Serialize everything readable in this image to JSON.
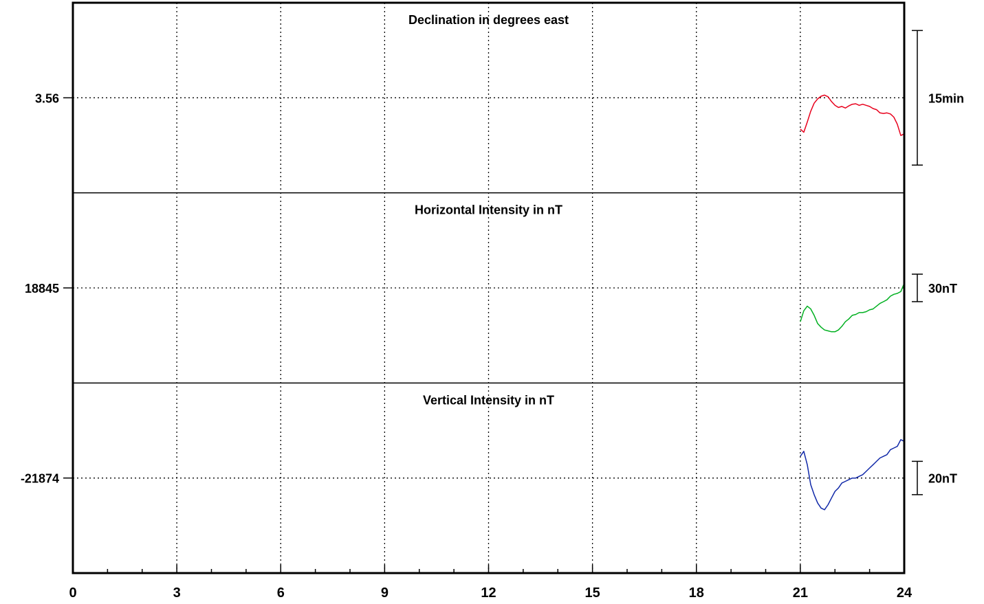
{
  "chart_data": {
    "type": "line",
    "x": {
      "ticks": [
        0,
        3,
        6,
        9,
        12,
        15,
        18,
        21,
        24
      ],
      "tick_labels": [
        "0",
        "3",
        "6",
        "9",
        "12",
        "15",
        "18",
        "21",
        "24"
      ],
      "range": [
        0,
        24
      ],
      "minor_step": 1
    },
    "grid": true,
    "panels": [
      {
        "title": "Declination in degrees east",
        "ref_value": 3.56,
        "ref_label": "3.56",
        "scale_label": "15min",
        "scale_span": 0.25,
        "half_range": 0.1765,
        "color": "#e8001c",
        "series": {
          "x": [
            21.0,
            21.1,
            21.2,
            21.3,
            21.4,
            21.5,
            21.6,
            21.7,
            21.8,
            21.9,
            22.0,
            22.1,
            22.2,
            22.3,
            22.4,
            22.5,
            22.6,
            22.7,
            22.8,
            22.9,
            23.0,
            23.1,
            23.2,
            23.3,
            23.4,
            23.5,
            23.6,
            23.7,
            23.8,
            23.9,
            24.0
          ],
          "y": [
            3.502,
            3.496,
            3.515,
            3.535,
            3.55,
            3.558,
            3.563,
            3.565,
            3.562,
            3.553,
            3.546,
            3.542,
            3.544,
            3.541,
            3.545,
            3.548,
            3.549,
            3.546,
            3.548,
            3.546,
            3.544,
            3.54,
            3.538,
            3.532,
            3.531,
            3.532,
            3.53,
            3.524,
            3.511,
            3.49,
            3.493
          ]
        }
      },
      {
        "title": "Horizontal Intensity in nT",
        "ref_value": 18845,
        "ref_label": "18845",
        "scale_label": "30nT",
        "scale_span": 30,
        "half_range": 104,
        "color": "#00b020",
        "series": {
          "x": [
            21.0,
            21.1,
            21.2,
            21.3,
            21.4,
            21.5,
            21.6,
            21.7,
            21.8,
            21.9,
            22.0,
            22.1,
            22.2,
            22.3,
            22.4,
            22.5,
            22.6,
            22.7,
            22.8,
            22.9,
            23.0,
            23.1,
            23.2,
            23.3,
            23.4,
            23.5,
            23.6,
            23.7,
            23.8,
            23.9,
            24.0
          ],
          "y": [
            18808,
            18820,
            18825,
            18822,
            18815,
            18806,
            18802,
            18799,
            18798,
            18797,
            18797,
            18799,
            18803,
            18808,
            18811,
            18815,
            18816,
            18818,
            18818,
            18819,
            18821,
            18822,
            18825,
            18828,
            18830,
            18832,
            18836,
            18838,
            18839,
            18841,
            18850
          ]
        }
      },
      {
        "title": "Vertical Intensity in nT",
        "ref_value": -21874,
        "ref_label": "-21874",
        "scale_label": "20nT",
        "scale_span": 20,
        "half_range": 57,
        "color": "#1028a8",
        "series": {
          "x": [
            21.0,
            21.1,
            21.2,
            21.3,
            21.4,
            21.5,
            21.6,
            21.7,
            21.8,
            21.9,
            22.0,
            22.1,
            22.2,
            22.3,
            22.4,
            22.5,
            22.6,
            22.7,
            22.8,
            22.9,
            23.0,
            23.1,
            23.2,
            23.3,
            23.4,
            23.5,
            23.6,
            23.7,
            23.8,
            23.9,
            24.0
          ],
          "y": [
            -21861,
            -21858,
            -21866,
            -21878,
            -21884,
            -21889,
            -21892,
            -21893,
            -21890,
            -21886,
            -21882,
            -21880,
            -21877,
            -21876,
            -21875,
            -21874,
            -21874,
            -21873,
            -21872,
            -21870,
            -21868,
            -21866,
            -21864,
            -21862,
            -21861,
            -21860,
            -21857,
            -21856,
            -21855,
            -21851,
            -21852
          ]
        }
      }
    ]
  }
}
